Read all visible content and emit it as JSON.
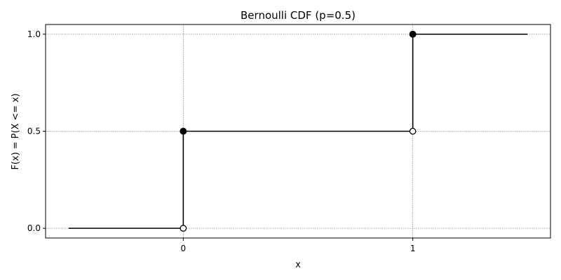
{
  "chart_data": {
    "type": "line",
    "title": "Bernoulli CDF (p=0.5)",
    "xlabel": "x",
    "ylabel": "F(x) = P(X <= x)",
    "xlim": [
      -0.6,
      1.6
    ],
    "ylim": [
      -0.05,
      1.05
    ],
    "xticks": [
      0,
      1
    ],
    "xtick_labels": [
      "0",
      "1"
    ],
    "yticks": [
      0,
      0.5,
      1
    ],
    "ytick_labels": [
      "0.0",
      "0.5",
      "1.0"
    ],
    "grid": true,
    "horizontal_segments": [
      {
        "x": [
          -0.5,
          0
        ],
        "y": 0
      },
      {
        "x": [
          0,
          1
        ],
        "y": 0.5
      },
      {
        "x": [
          1,
          1.5
        ],
        "y": 1
      }
    ],
    "vertical_jumps": [
      {
        "x": 0,
        "y": [
          0,
          0.5
        ]
      },
      {
        "x": 1,
        "y": [
          0.5,
          1
        ]
      }
    ],
    "closed_points": [
      {
        "x": 0,
        "y": 0.5
      },
      {
        "x": 1,
        "y": 1
      }
    ],
    "open_points": [
      {
        "x": 0,
        "y": 0
      },
      {
        "x": 1,
        "y": 0.5
      }
    ],
    "line_color": "#000000",
    "grid_color": "#888888"
  }
}
